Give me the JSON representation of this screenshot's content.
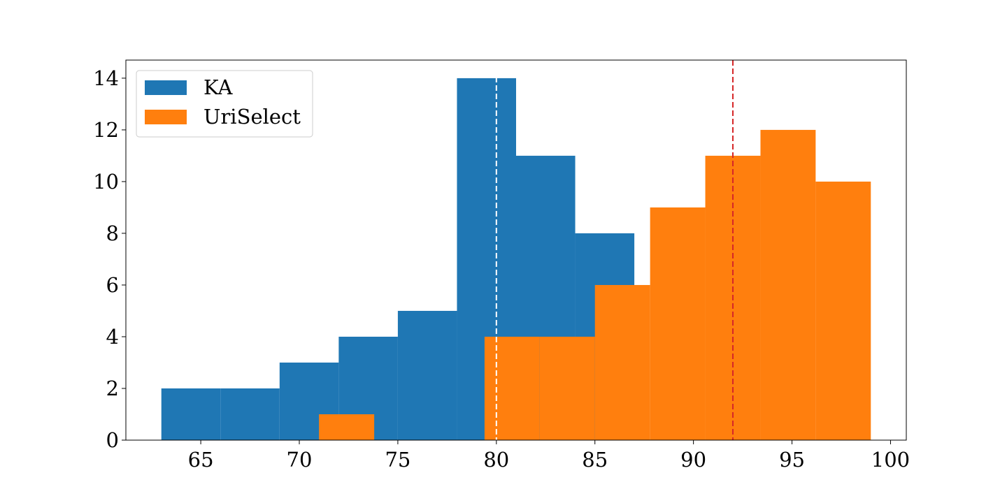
{
  "chart_data": {
    "type": "bar",
    "subtype": "overlaid-histogram",
    "title": "",
    "xlabel": "",
    "ylabel": "",
    "xlim": [
      61.2,
      100.8
    ],
    "ylim": [
      0,
      14.7
    ],
    "xticks": [
      65,
      70,
      75,
      80,
      85,
      90,
      95,
      100
    ],
    "yticks": [
      0,
      2,
      4,
      6,
      8,
      10,
      12,
      14
    ],
    "grid": false,
    "legend_position": "upper-left",
    "series": [
      {
        "name": "KA",
        "color": "#1f77b4",
        "bins": [
          {
            "x0": 63.0,
            "x1": 66.0,
            "count": 2
          },
          {
            "x0": 66.0,
            "x1": 69.0,
            "count": 2
          },
          {
            "x0": 69.0,
            "x1": 72.0,
            "count": 3
          },
          {
            "x0": 72.0,
            "x1": 75.0,
            "count": 4
          },
          {
            "x0": 75.0,
            "x1": 78.0,
            "count": 5
          },
          {
            "x0": 78.0,
            "x1": 81.0,
            "count": 14
          },
          {
            "x0": 81.0,
            "x1": 84.0,
            "count": 11
          },
          {
            "x0": 84.0,
            "x1": 87.0,
            "count": 8
          }
        ]
      },
      {
        "name": "UriSelect",
        "color": "#ff7f0e",
        "bins": [
          {
            "x0": 71.0,
            "x1": 73.8,
            "count": 1
          },
          {
            "x0": 73.8,
            "x1": 76.6,
            "count": 0
          },
          {
            "x0": 76.6,
            "x1": 79.4,
            "count": 0
          },
          {
            "x0": 79.4,
            "x1": 82.2,
            "count": 4
          },
          {
            "x0": 82.2,
            "x1": 85.0,
            "count": 4
          },
          {
            "x0": 85.0,
            "x1": 87.8,
            "count": 6
          },
          {
            "x0": 87.8,
            "x1": 90.6,
            "count": 9
          },
          {
            "x0": 90.6,
            "x1": 93.4,
            "count": 11
          },
          {
            "x0": 93.4,
            "x1": 96.2,
            "count": 12
          },
          {
            "x0": 96.2,
            "x1": 99.0,
            "count": 10
          }
        ]
      }
    ],
    "reference_lines": [
      {
        "name": "ka-mean-line",
        "x": 80.0,
        "color": "#ffffff",
        "style": "dashed"
      },
      {
        "name": "uriselect-mean-line",
        "x": 92.0,
        "color": "#d62728",
        "style": "dashed"
      }
    ]
  }
}
